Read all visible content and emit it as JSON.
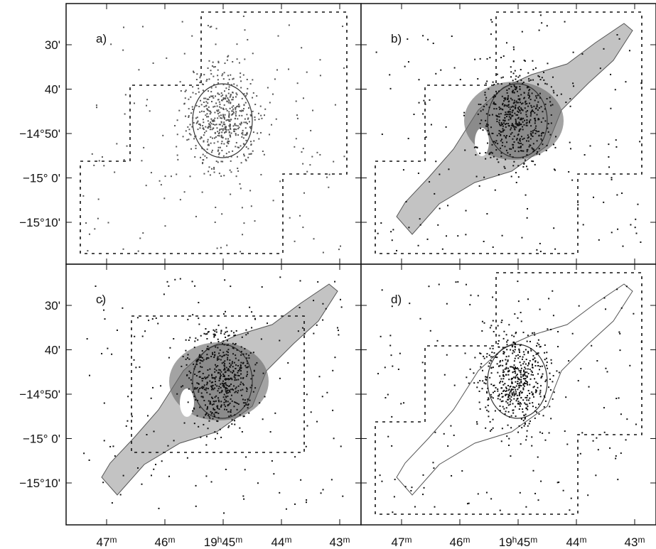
{
  "panels": [
    {
      "label": "a)"
    },
    {
      "label": "b)"
    },
    {
      "label": "c)"
    },
    {
      "label": "d)"
    }
  ],
  "x_labels": [
    [
      "47",
      "m"
    ],
    [
      "46",
      "m"
    ],
    [
      "19",
      "h",
      "45",
      "m"
    ],
    [
      "44",
      "m"
    ],
    [
      "43",
      "m"
    ]
  ],
  "y_labels": [
    "30'",
    "40'",
    "−14°50'",
    "−15° 0'",
    "−15°10'"
  ]
}
